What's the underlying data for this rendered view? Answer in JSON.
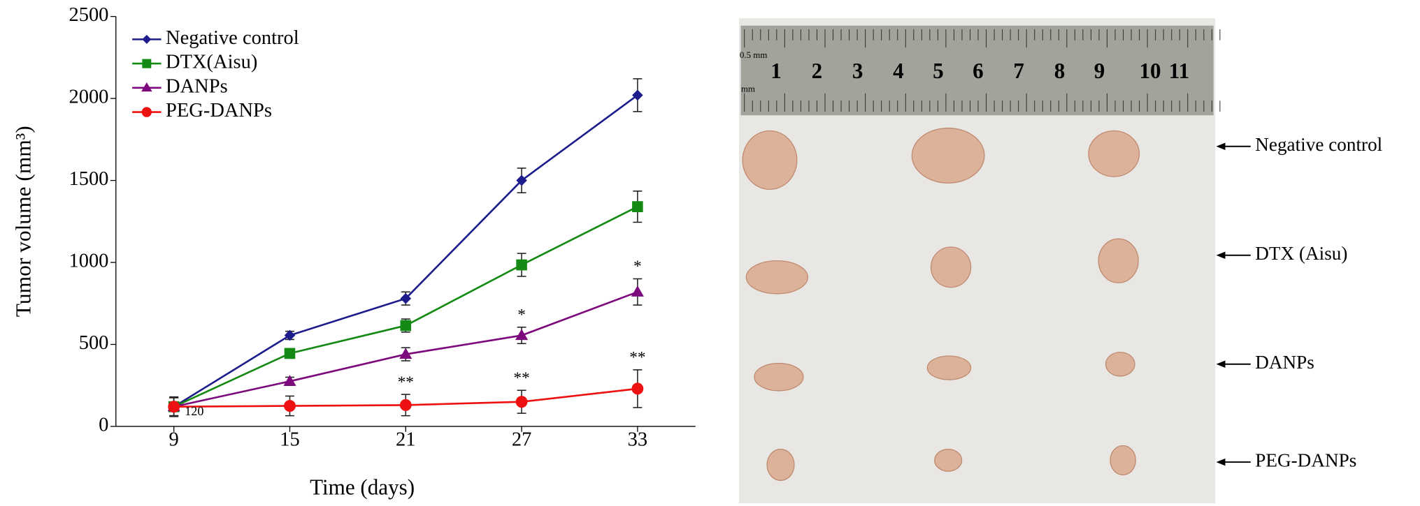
{
  "chart_data": {
    "type": "line",
    "xlabel": "Time (days)",
    "ylabel": "Tumor volume (mm³)",
    "x": [
      9,
      15,
      21,
      27,
      33
    ],
    "xlim": [
      6,
      36
    ],
    "xticks": [
      9,
      15,
      21,
      27,
      33
    ],
    "ylim": [
      0,
      2500
    ],
    "yticks": [
      0,
      500,
      1000,
      1500,
      2000,
      2500
    ],
    "grid": false,
    "legend": "upper left",
    "series": [
      {
        "name": "Negative control",
        "color": "#1c1c8c",
        "marker": "diamond",
        "values": [
          120,
          555,
          780,
          1500,
          2020
        ],
        "errors": [
          55,
          25,
          40,
          75,
          100
        ]
      },
      {
        "name": "DTX(Aisu)",
        "color": "#148a14",
        "marker": "square",
        "values": [
          120,
          445,
          615,
          985,
          1340
        ],
        "errors": [
          55,
          20,
          40,
          70,
          95
        ]
      },
      {
        "name": "DANPs",
        "color": "#7d0a7d",
        "marker": "triangle",
        "values": [
          120,
          275,
          440,
          555,
          820
        ],
        "errors": [
          55,
          25,
          40,
          50,
          80
        ],
        "significance": [
          null,
          null,
          null,
          "*",
          "*"
        ]
      },
      {
        "name": "PEG-DANPs",
        "color": "#ee1111",
        "marker": "circle",
        "values": [
          120,
          125,
          130,
          150,
          230
        ],
        "errors": [
          60,
          60,
          65,
          70,
          115
        ],
        "significance": [
          null,
          null,
          "**",
          "**",
          "**"
        ],
        "value_labels": [
          "120",
          null,
          null,
          null,
          null
        ]
      }
    ]
  },
  "photo": {
    "ruler": [
      "0.5 mm",
      "mm",
      "1",
      "2",
      "3",
      "4",
      "5",
      "6",
      "7",
      "8",
      "9",
      "10",
      "11"
    ],
    "labels": [
      "Negative control",
      "DTX (Aisu)",
      "DANPs",
      "PEG-DANPs"
    ]
  }
}
